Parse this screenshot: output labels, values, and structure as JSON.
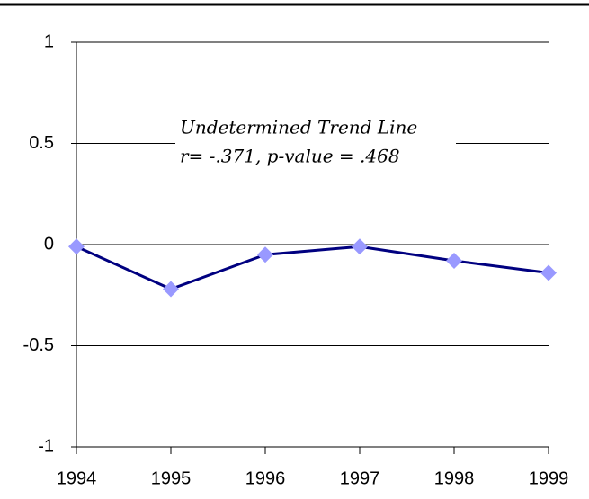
{
  "chart_data": {
    "type": "line",
    "annotations": [
      "Undetermined Trend Line",
      "r= -.371, p-value = .468"
    ],
    "x": [
      1994,
      1995,
      1996,
      1997,
      1998,
      1999
    ],
    "series": [
      {
        "color": "#000080",
        "marker_color": "#9999ff",
        "values": [
          -0.01,
          -0.22,
          -0.05,
          -0.01,
          -0.08,
          -0.14
        ]
      }
    ],
    "xlim": [
      1994,
      1999
    ],
    "xticks": [
      1994,
      1995,
      1996,
      1997,
      1998,
      1999
    ],
    "ylim": [
      -1,
      1
    ],
    "yticks": [
      -1,
      -0.5,
      0,
      0.5,
      1
    ],
    "grid": true
  }
}
